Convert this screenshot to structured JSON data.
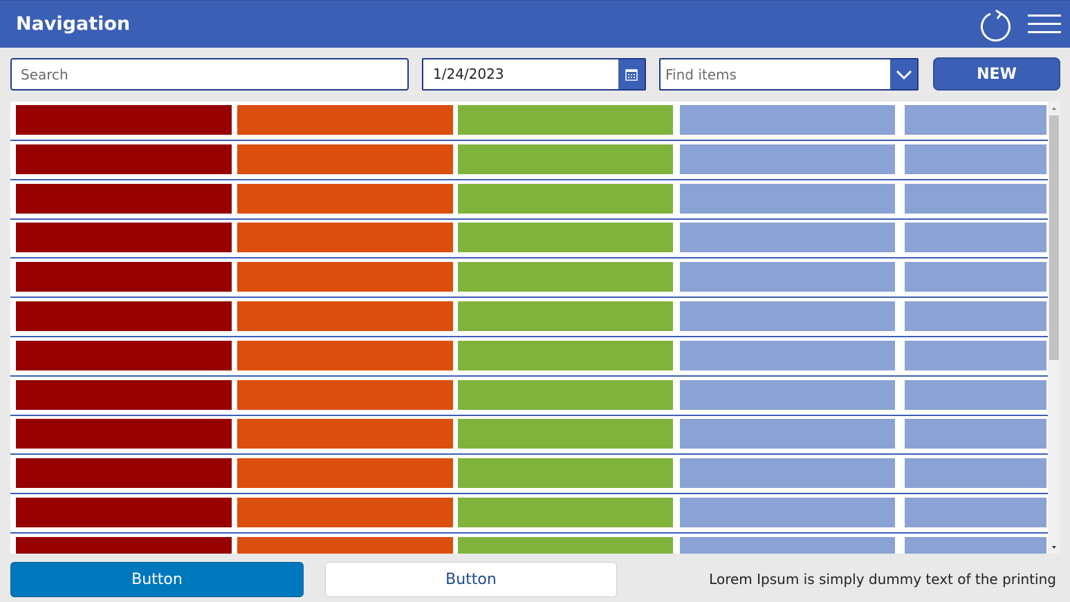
{
  "header": {
    "title": "Navigation",
    "refresh_icon": "refresh-icon",
    "menu_icon": "hamburger-menu-icon"
  },
  "toolbar": {
    "search_placeholder": "Search",
    "date_value": "1/24/2023",
    "find_placeholder": "Find items",
    "new_label": "NEW"
  },
  "gallery": {
    "visible_rows": 12,
    "column_colors": [
      "#960000",
      "#dc4e0e",
      "#80b33c",
      "#8aa2d4",
      "#8aa2d4"
    ]
  },
  "footer": {
    "primary_button": "Button",
    "secondary_button": "Button",
    "text": "Lorem Ipsum is simply dummy text of the printing"
  },
  "colors": {
    "brand": "#3a5fb5",
    "primary_button": "#0078bd",
    "background": "#e9e9e9"
  }
}
